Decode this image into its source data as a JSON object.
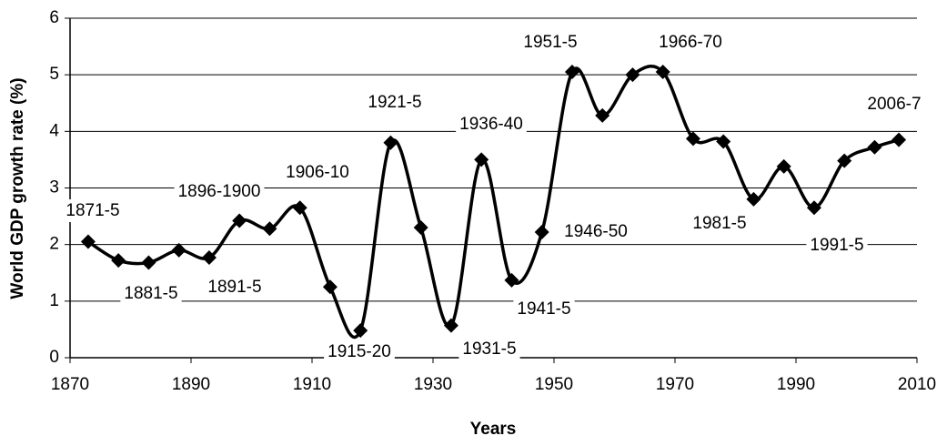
{
  "chart_data": {
    "type": "line",
    "x_label": "Years",
    "y_label": "World GDP growth rate (%)",
    "x": [
      1873,
      1878,
      1883,
      1888,
      1893,
      1898,
      1903,
      1908,
      1913,
      1918,
      1923,
      1928,
      1933,
      1938,
      1943,
      1948,
      1953,
      1958,
      1963,
      1968,
      1973,
      1978,
      1983,
      1988,
      1993,
      1998,
      2003,
      2007
    ],
    "series": [
      {
        "color": "#000000",
        "values": [
          2.05,
          1.72,
          1.68,
          1.9,
          1.77,
          2.42,
          2.28,
          2.65,
          1.25,
          0.48,
          3.8,
          2.3,
          0.57,
          3.5,
          1.37,
          2.22,
          5.05,
          4.28,
          5.0,
          5.05,
          3.87,
          3.82,
          2.8,
          3.38,
          2.65,
          3.48,
          3.72,
          3.85
        ]
      }
    ],
    "annotations": [
      "1871-5",
      "1881-5",
      "1891-5",
      "1896-1900",
      "1906-10",
      "1915-20",
      "1921-5",
      "1931-5",
      "1936-40",
      "1941-5",
      "1946-50",
      "1951-5",
      "1966-70",
      "1981-5",
      "1991-5",
      "2006-7"
    ],
    "xlim": [
      1870,
      2010
    ],
    "xticks": [
      1870,
      1890,
      1910,
      1930,
      1950,
      1970,
      1990,
      2010
    ],
    "ylim": [
      0,
      6
    ],
    "yticks": [
      0,
      1,
      2,
      3,
      4,
      5,
      6
    ],
    "grid": true
  }
}
